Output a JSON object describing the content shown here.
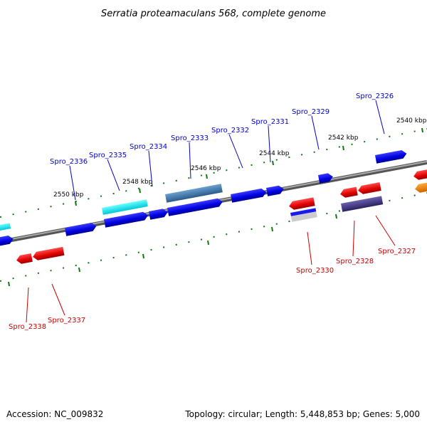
{
  "title": "Serratia proteamaculans 568, complete genome",
  "footer": {
    "accession": "Accession: NC_009832",
    "summary": "Topology: circular; Length: 5,448,853 bp; Genes: 5,000"
  },
  "colors": {
    "forward_gene": "#0000ee",
    "reverse_gene": "#ee0000",
    "forward_label": "#0000cc",
    "reverse_label": "#cc0000",
    "backbone": "#777777",
    "tick": "#117711"
  },
  "scale_ticks": [
    {
      "position_kbp": 2540,
      "label": "2540 kbp"
    },
    {
      "position_kbp": 2542,
      "label": "2542 kbp"
    },
    {
      "position_kbp": 2544,
      "label": "2544 kbp"
    },
    {
      "position_kbp": 2546,
      "label": "2546 kbp"
    },
    {
      "position_kbp": 2548,
      "label": "2548 kbp"
    },
    {
      "position_kbp": 2550,
      "label": "2550 kbp"
    }
  ],
  "forward_labels": [
    "Spro_2326",
    "Spro_2329",
    "Spro_2331",
    "Spro_2332",
    "Spro_2333",
    "Spro_2334",
    "Spro_2335",
    "Spro_2336"
  ],
  "reverse_labels": [
    "Spro_2327",
    "Spro_2328",
    "Spro_2330",
    "Spro_2337",
    "Spro_2338"
  ]
}
